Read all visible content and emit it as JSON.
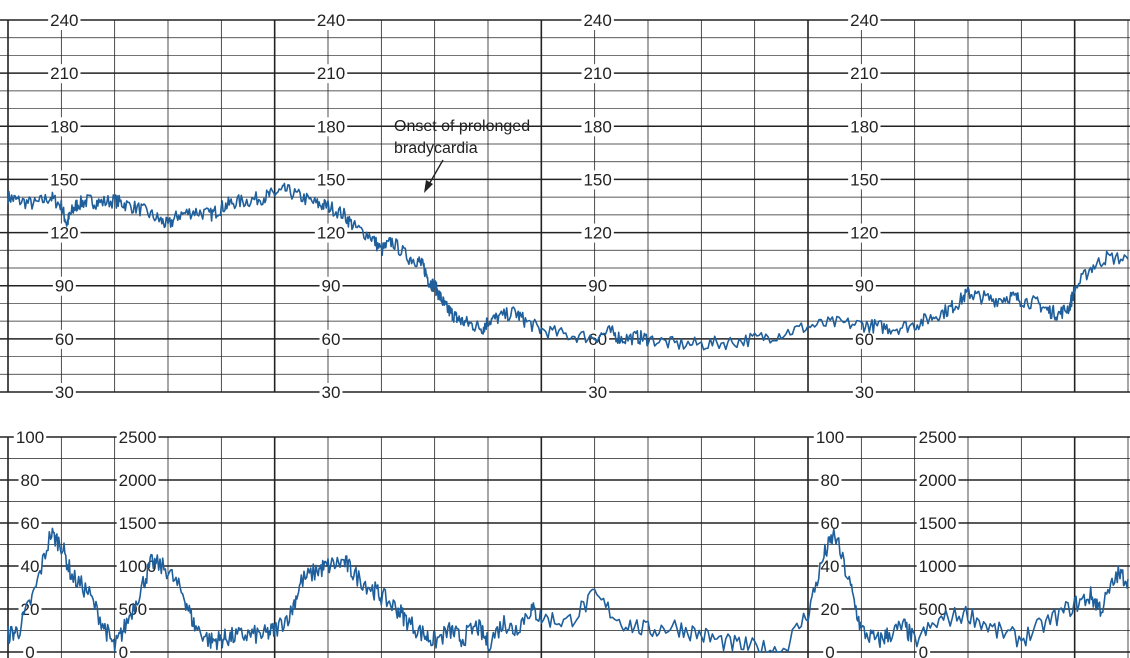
{
  "chart_data": [
    {
      "type": "line",
      "panel": "fetal-heart-rate",
      "ylim": [
        30,
        240
      ],
      "yticks": [
        30,
        60,
        90,
        120,
        150,
        180,
        210,
        240
      ],
      "x": [
        0,
        0.2,
        0.5,
        0.8,
        1.0,
        1.1,
        1.2,
        1.3,
        1.5,
        1.7,
        2.0,
        2.2,
        2.5,
        2.8,
        3.0,
        3.2,
        3.5,
        3.8,
        4.0,
        4.2,
        4.5,
        4.8,
        5.0,
        5.2,
        5.5,
        5.8,
        6.0,
        6.3,
        6.5,
        6.8,
        7.0,
        7.2,
        7.5,
        7.7,
        7.8,
        7.9,
        8.0,
        8.1,
        8.2,
        8.3,
        8.4,
        8.5,
        8.7,
        8.9,
        9.0,
        9.2,
        9.5,
        9.7,
        10.0,
        10.5,
        11.0,
        11.3,
        11.5,
        11.8,
        12.0,
        12.5,
        13.0,
        13.5,
        14.0,
        14.5,
        15.0,
        15.5,
        16.0,
        16.3,
        16.6,
        17.0,
        17.3,
        17.6,
        17.8,
        18.0,
        18.2,
        18.5,
        18.8,
        19.0,
        19.3,
        19.5,
        19.7,
        19.9,
        20.0,
        20.3,
        20.6,
        21.0
      ],
      "series": [
        {
          "values": [
            140,
            138,
            136,
            140,
            135,
            125,
            132,
            136,
            138,
            137,
            138,
            136,
            133,
            128,
            124,
            130,
            132,
            130,
            134,
            137,
            138,
            140,
            142,
            144,
            140,
            136,
            135,
            130,
            123,
            118,
            110,
            115,
            106,
            104,
            100,
            92,
            90,
            84,
            78,
            75,
            72,
            70,
            68,
            66,
            70,
            72,
            75,
            70,
            65,
            62,
            61,
            64,
            60,
            61,
            60,
            57,
            57,
            58,
            60,
            63,
            67,
            69,
            68,
            67,
            66,
            68,
            72,
            76,
            80,
            86,
            84,
            82,
            84,
            82,
            80,
            76,
            74,
            78,
            88,
            100,
            106,
            105
          ]
        }
      ]
    },
    {
      "type": "line",
      "panel": "uterine-activity",
      "ylim": [
        0,
        100
      ],
      "yticks": [
        0,
        20,
        40,
        60,
        80,
        100
      ],
      "secondary_yticks": [
        0,
        500,
        1000,
        1500,
        2000,
        2500
      ],
      "x": [
        0,
        0.2,
        0.5,
        0.8,
        1.0,
        1.2,
        1.5,
        1.8,
        2.0,
        2.2,
        2.5,
        2.7,
        3.0,
        3.3,
        3.5,
        3.8,
        4.0,
        4.2,
        4.5,
        4.8,
        5.0,
        5.3,
        5.5,
        5.8,
        6.0,
        6.3,
        6.5,
        6.8,
        7.0,
        7.3,
        7.5,
        7.8,
        8.0,
        8.3,
        8.5,
        8.8,
        9.0,
        9.3,
        9.5,
        9.8,
        10.0,
        10.5,
        11.0,
        11.5,
        12.0,
        12.5,
        13.0,
        13.5,
        14.0,
        14.5,
        15.0,
        15.3,
        15.5,
        15.8,
        16.0,
        16.3,
        16.5,
        16.8,
        17.0,
        17.5,
        18.0,
        18.5,
        19.0,
        19.5,
        20.0,
        20.3,
        20.5,
        20.8,
        21.0
      ],
      "series": [
        {
          "values": [
            8,
            10,
            28,
            55,
            50,
            35,
            28,
            12,
            2,
            12,
            30,
            42,
            38,
            26,
            12,
            5,
            6,
            7,
            8,
            8,
            10,
            18,
            33,
            38,
            40,
            42,
            36,
            30,
            26,
            20,
            14,
            8,
            5,
            10,
            6,
            12,
            4,
            14,
            10,
            20,
            16,
            14,
            26,
            14,
            10,
            12,
            8,
            4,
            2,
            0,
            18,
            45,
            55,
            30,
            10,
            5,
            8,
            12,
            5,
            15,
            18,
            10,
            6,
            14,
            22,
            26,
            20,
            36,
            34
          ]
        }
      ],
      "annotation": ""
    }
  ],
  "annotation": {
    "line1": "Onset of prolonged",
    "line2": "bradycardia"
  },
  "colors": {
    "trace": "#1f5f9b",
    "grid": "#222222",
    "background": "#ffffff"
  }
}
